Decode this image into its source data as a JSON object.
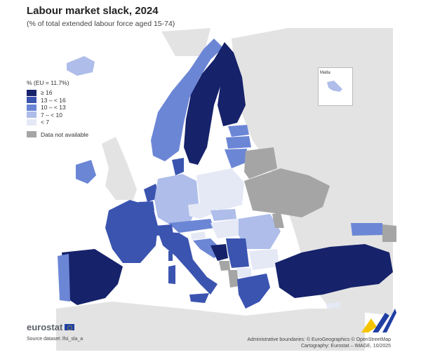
{
  "title": "Labour market slack, 2024",
  "subtitle": "(% of total extended labour force aged 15-74)",
  "legend": {
    "title": "% (EU = 11.7%)",
    "classes": [
      {
        "label": "≥ 16",
        "color": "#16226a"
      },
      {
        "label": "13 – < 16",
        "color": "#3b54b0"
      },
      {
        "label": "10 – < 13",
        "color": "#6c86d6"
      },
      {
        "label": "7 – < 10",
        "color": "#aebde9"
      },
      {
        "label": "< 7",
        "color": "#e5e9f6"
      }
    ],
    "na_label": "Data not available",
    "na_color": "#a5a5a5"
  },
  "inset_label": "Malta",
  "footer": {
    "brand": "eurostat",
    "source": "Source dataset: lfsi_sla_a",
    "credits_1": "Administrative boundaries: © EuroGeographics © OpenStreetMap",
    "credits_2": "Cartography: Eurostat – IMAGE, 10/2025"
  }
}
